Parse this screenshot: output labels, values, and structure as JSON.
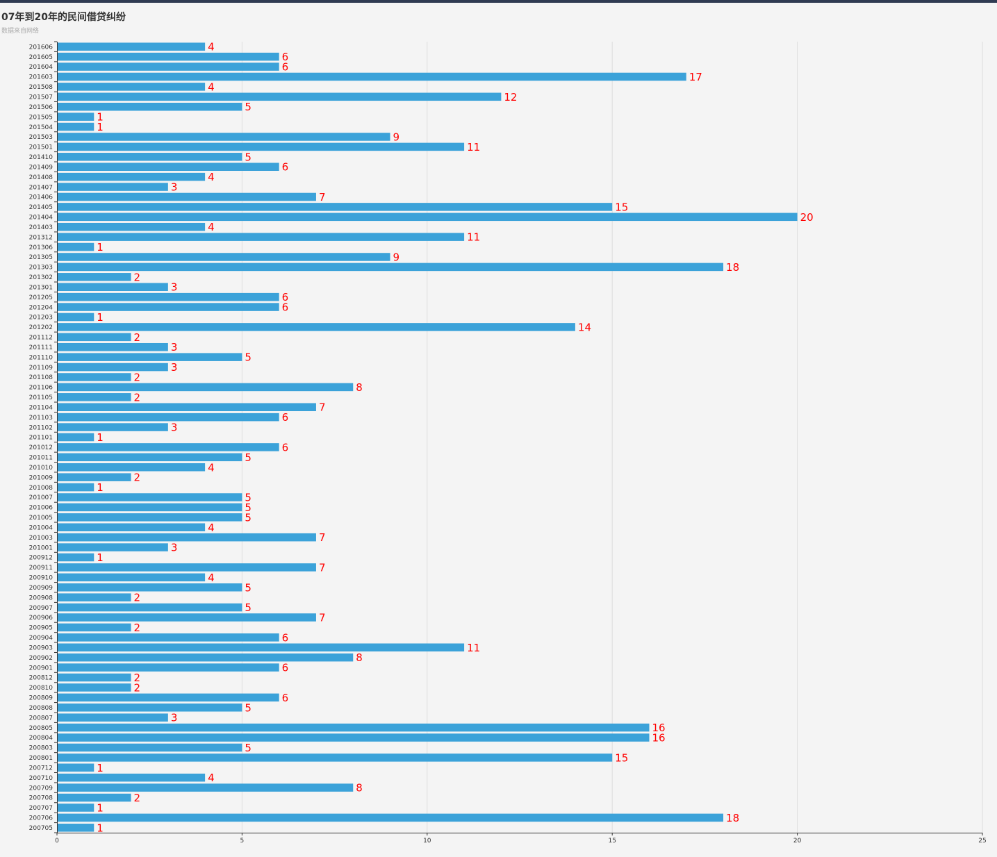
{
  "header": {
    "title": "07年到20年的民间借贷纠纷",
    "subtitle": "数据来自网络"
  },
  "colors": {
    "bar": "#3ba2d9",
    "label": "#ff0000",
    "axis": "#333333",
    "grid": "#dddddd",
    "topbar": "#2f3b52"
  },
  "chart_data": {
    "type": "bar",
    "orientation": "horizontal",
    "title": "07年到20年的民间借贷纠纷",
    "subtitle": "数据来自网络",
    "xlabel": "",
    "ylabel": "",
    "xlim": [
      0,
      25
    ],
    "x_ticks": [
      0,
      5,
      10,
      15,
      20,
      25
    ],
    "grid": true,
    "data_labels": true,
    "categories": [
      "201606",
      "201605",
      "201604",
      "201603",
      "201508",
      "201507",
      "201506",
      "201505",
      "201504",
      "201503",
      "201501",
      "201410",
      "201409",
      "201408",
      "201407",
      "201406",
      "201405",
      "201404",
      "201403",
      "201312",
      "201306",
      "201305",
      "201303",
      "201302",
      "201301",
      "201205",
      "201204",
      "201203",
      "201202",
      "201112",
      "201111",
      "201110",
      "201109",
      "201108",
      "201106",
      "201105",
      "201104",
      "201103",
      "201102",
      "201101",
      "201012",
      "201011",
      "201010",
      "201009",
      "201008",
      "201007",
      "201006",
      "201005",
      "201004",
      "201003",
      "201001",
      "200912",
      "200911",
      "200910",
      "200909",
      "200908",
      "200907",
      "200906",
      "200905",
      "200904",
      "200903",
      "200902",
      "200901",
      "200812",
      "200810",
      "200809",
      "200808",
      "200807",
      "200805",
      "200804",
      "200803",
      "200801",
      "200712",
      "200710",
      "200709",
      "200708",
      "200707",
      "200706",
      "200705"
    ],
    "values": [
      4,
      6,
      6,
      17,
      4,
      12,
      5,
      1,
      1,
      9,
      11,
      5,
      6,
      4,
      3,
      7,
      15,
      20,
      4,
      11,
      1,
      9,
      18,
      2,
      3,
      6,
      6,
      1,
      14,
      2,
      3,
      5,
      3,
      2,
      8,
      2,
      7,
      6,
      3,
      1,
      6,
      5,
      4,
      2,
      1,
      5,
      5,
      5,
      4,
      7,
      3,
      1,
      7,
      4,
      5,
      2,
      5,
      7,
      2,
      6,
      11,
      8,
      6,
      2,
      2,
      6,
      5,
      3,
      16,
      16,
      5,
      15,
      1,
      4,
      8,
      2,
      1,
      18,
      1
    ]
  }
}
